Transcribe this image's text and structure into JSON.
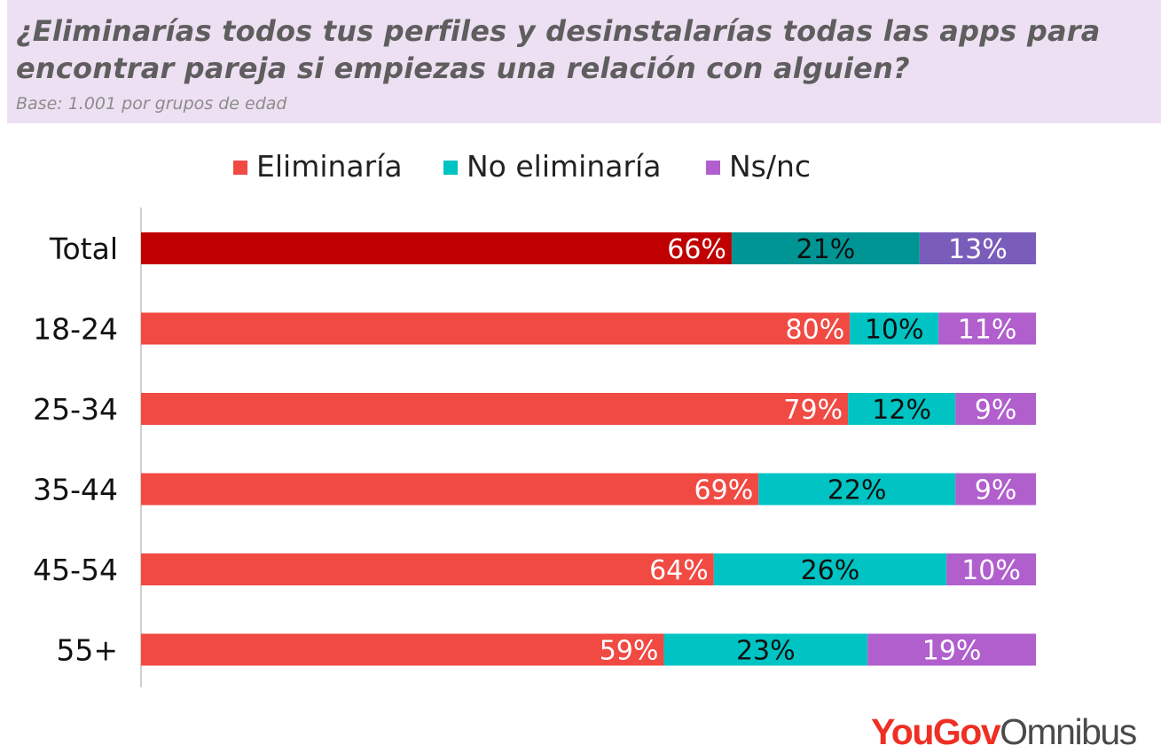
{
  "title": "¿Eliminarías todos tus perfiles y desinstalarías todas las apps para encontrar pareja si empiezas una relación con alguien?",
  "subtitle": "Base: 1.001 por grupos de edad",
  "logo": {
    "part1": "YouGov",
    "part2": "Omnibus"
  },
  "chart_data": {
    "type": "bar",
    "orientation": "horizontal",
    "stacked": true,
    "categories": [
      "Total",
      "18-24",
      "25-34",
      "35-44",
      "45-54",
      "55+"
    ],
    "series": [
      {
        "name": "Eliminaría",
        "color": "#f04a43",
        "highlight_color": "#c00000",
        "values": [
          66,
          80,
          79,
          69,
          64,
          59
        ],
        "labels": [
          "66%",
          "80%",
          "79%",
          "69%",
          "64%",
          "59%"
        ],
        "label_color": "#ffffff"
      },
      {
        "name": "No eliminaría",
        "color": "#00c3c3",
        "highlight_color": "#009595",
        "values": [
          21,
          10,
          12,
          22,
          26,
          23
        ],
        "labels": [
          "21%",
          "10%",
          "12%",
          "22%",
          "26%",
          "23%"
        ],
        "label_color": "#111111"
      },
      {
        "name": "Ns/nc",
        "color": "#b05fcd",
        "highlight_color": "#7a5cba",
        "values": [
          13,
          11,
          9,
          9,
          10,
          19
        ],
        "labels": [
          "13%",
          "11%",
          "9%",
          "9%",
          "10%",
          "19%"
        ],
        "label_color": "#ffffff"
      }
    ],
    "highlight_category": "Total",
    "xlim": [
      0,
      100
    ],
    "legend_position": "top"
  }
}
